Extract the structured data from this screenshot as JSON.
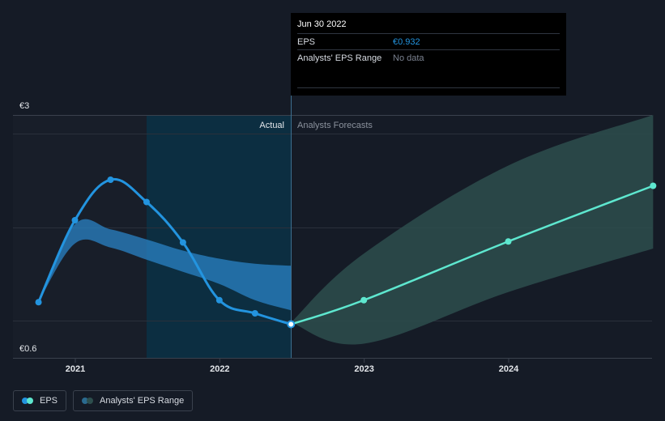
{
  "tooltip": {
    "date": "Jun 30 2022",
    "eps_label": "EPS",
    "eps_value": "€0.932",
    "range_label": "Analysts' EPS Range",
    "range_value": "No data"
  },
  "legend": {
    "eps": "EPS",
    "range": "Analysts' EPS Range"
  },
  "colors": {
    "background": "#151b26",
    "eps_actual": "#2394df",
    "eps_forecast": "#5ee7cf",
    "range_actual": "#2a83c6",
    "range_forecast": "#2d4e4d",
    "forecast_band": "#0c2f42"
  },
  "chart_data": {
    "type": "line",
    "y_axis": {
      "top_label": "€3",
      "bottom_label": "€0.6",
      "ylim": [
        0.6,
        3.0
      ]
    },
    "x_ticks": [
      "2021",
      "2022",
      "2023",
      "2024"
    ],
    "section_labels": {
      "actual": "Actual",
      "forecast": "Analysts Forecasts"
    },
    "marker_date": "Jun 30 2022",
    "series": [
      {
        "name": "EPS",
        "segment": "actual",
        "points": [
          {
            "x": "2020-09-30",
            "y": 1.15
          },
          {
            "x": "2020-12-31",
            "y": 1.96
          },
          {
            "x": "2021-03-31",
            "y": 2.36
          },
          {
            "x": "2021-06-30",
            "y": 2.14
          },
          {
            "x": "2021-09-30",
            "y": 1.74
          },
          {
            "x": "2021-12-31",
            "y": 1.17
          },
          {
            "x": "2022-03-31",
            "y": 1.04
          },
          {
            "x": "2022-06-30",
            "y": 0.932
          }
        ]
      },
      {
        "name": "EPS",
        "segment": "forecast",
        "points": [
          {
            "x": "2022-06-30",
            "y": 0.932
          },
          {
            "x": "2022-12-31",
            "y": 1.17
          },
          {
            "x": "2023-12-31",
            "y": 1.75
          },
          {
            "x": "2024-12-31",
            "y": 2.3
          }
        ]
      }
    ],
    "range_actual": [
      {
        "x": "2020-09-30",
        "high": 1.15,
        "low": 1.15
      },
      {
        "x": "2020-12-31",
        "high": 1.92,
        "low": 1.73
      },
      {
        "x": "2021-03-31",
        "high": 1.87,
        "low": 1.69
      },
      {
        "x": "2021-06-30",
        "high": 1.77,
        "low": 1.57
      },
      {
        "x": "2021-09-30",
        "high": 1.66,
        "low": 1.45
      },
      {
        "x": "2021-12-31",
        "high": 1.58,
        "low": 1.33
      },
      {
        "x": "2022-03-31",
        "high": 1.53,
        "low": 1.17
      },
      {
        "x": "2022-06-30",
        "high": 1.51,
        "low": 1.07
      }
    ],
    "range_forecast": [
      {
        "x": "2022-06-30",
        "high": 0.95,
        "low": 0.95
      },
      {
        "x": "2022-12-31",
        "high": 1.63,
        "low": 0.74
      },
      {
        "x": "2023-12-31",
        "high": 2.5,
        "low": 1.25
      },
      {
        "x": "2024-12-31",
        "high": 3.0,
        "low": 1.68
      }
    ]
  }
}
